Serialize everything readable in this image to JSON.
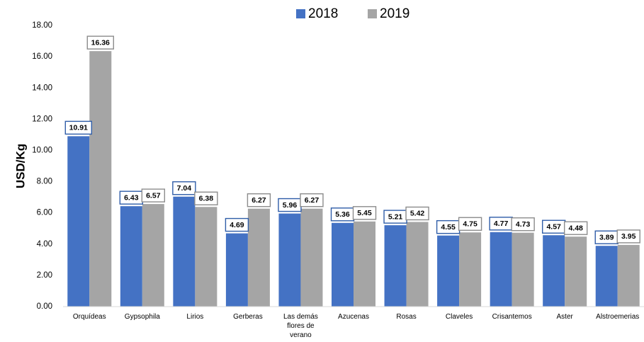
{
  "chart_data": {
    "type": "bar",
    "ylabel": "USD/Kg",
    "xlabel": "",
    "title": "",
    "ylim": [
      0,
      18
    ],
    "yticks": [
      "0.00",
      "2.00",
      "4.00",
      "6.00",
      "8.00",
      "10.00",
      "12.00",
      "14.00",
      "16.00",
      "18.00"
    ],
    "grid": false,
    "legend_position": "top",
    "categories": [
      [
        "Orquídeas"
      ],
      [
        "Gypsophila"
      ],
      [
        "Lirios"
      ],
      [
        "Gerberas"
      ],
      [
        "Las demás",
        "flores de",
        "verano"
      ],
      [
        "Azucenas"
      ],
      [
        "Rosas"
      ],
      [
        "Claveles"
      ],
      [
        "Crisantemos"
      ],
      [
        "Aster"
      ],
      [
        "Alstroemerias"
      ]
    ],
    "series": [
      {
        "name": "2018",
        "color": "#4472C4",
        "label_border": "#2F5DA8",
        "values": [
          10.91,
          6.43,
          7.04,
          4.69,
          5.96,
          5.36,
          5.21,
          4.55,
          4.77,
          4.57,
          3.89
        ],
        "labels": [
          "10.91",
          "6.43",
          "7.04",
          "4.69",
          "5.96",
          "5.36",
          "5.21",
          "4.55",
          "4.77",
          "4.57",
          "3.89"
        ]
      },
      {
        "name": "2019",
        "color": "#A5A5A5",
        "label_border": "#8C8C8C",
        "values": [
          16.36,
          6.57,
          6.38,
          6.27,
          6.27,
          5.45,
          5.42,
          4.75,
          4.73,
          4.48,
          3.95
        ],
        "labels": [
          "16.36",
          "6.57",
          "6.38",
          "6.27",
          "6.27",
          "5.45",
          "5.42",
          "4.75",
          "4.73",
          "4.48",
          "3.95"
        ]
      }
    ]
  }
}
